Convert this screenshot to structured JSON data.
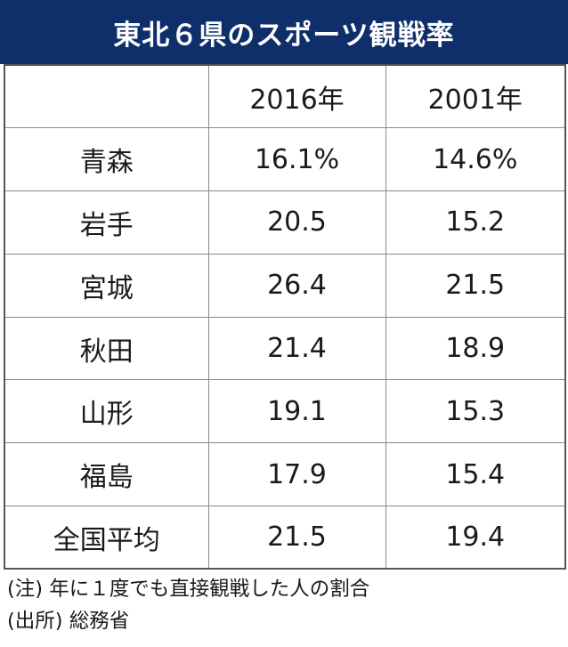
{
  "title": "東北６県のスポーツ観戦率",
  "table": {
    "headers": [
      "",
      "2016年",
      "2001年"
    ],
    "rows": [
      {
        "region": "青森",
        "y2016": "16.1%",
        "y2001": "14.6%"
      },
      {
        "region": "岩手",
        "y2016": "20.5",
        "y2001": "15.2"
      },
      {
        "region": "宮城",
        "y2016": "26.4",
        "y2001": "21.5"
      },
      {
        "region": "秋田",
        "y2016": "21.4",
        "y2001": "18.9"
      },
      {
        "region": "山形",
        "y2016": "19.1",
        "y2001": "15.3"
      },
      {
        "region": "福島",
        "y2016": "17.9",
        "y2001": "15.4"
      },
      {
        "region": "全国平均",
        "y2016": "21.5",
        "y2001": "19.4"
      }
    ]
  },
  "notes": {
    "note": "(注) 年に１度でも直接観戦した人の割合",
    "source": "(出所) 総務省"
  }
}
